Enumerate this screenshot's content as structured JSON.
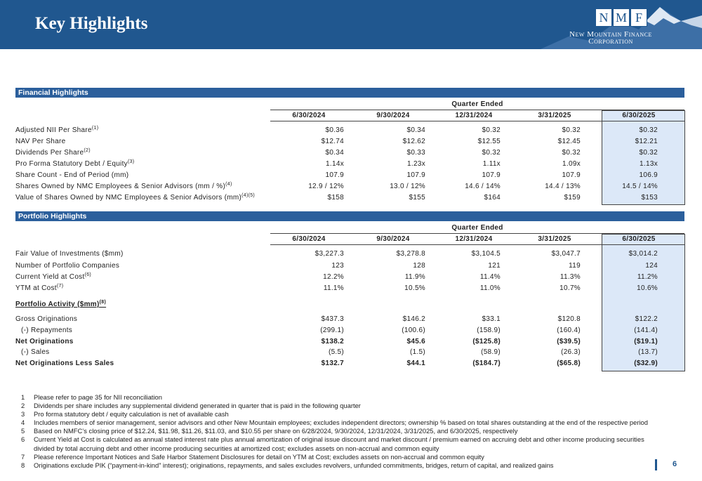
{
  "header": {
    "title": "Key Highlights",
    "logo_letters": [
      "N",
      "M",
      "F"
    ],
    "company_line1": "New Mountain Finance",
    "company_line2": "Corporation"
  },
  "financial": {
    "section_title": "Financial Highlights",
    "group_header": "Quarter Ended",
    "columns": [
      "6/30/2024",
      "9/30/2024",
      "12/31/2024",
      "3/31/2025",
      "6/30/2025"
    ],
    "rows": [
      {
        "label": "Adjusted NII Per Share",
        "sup": "(1)",
        "values": [
          "$0.36",
          "$0.34",
          "$0.32",
          "$0.32",
          "$0.32"
        ]
      },
      {
        "label": "NAV Per Share",
        "values": [
          "$12.74",
          "$12.62",
          "$12.55",
          "$12.45",
          "$12.21"
        ]
      },
      {
        "label": "Dividends Per Share",
        "sup": "(2)",
        "values": [
          "$0.34",
          "$0.33",
          "$0.32",
          "$0.32",
          "$0.32"
        ]
      },
      {
        "label": "Pro Forma Statutory Debt / Equity",
        "sup": "(3)",
        "values": [
          "1.14x",
          "1.23x",
          "1.11x",
          "1.09x",
          "1.13x"
        ]
      },
      {
        "label": "Share Count - End of Period (mm)",
        "values": [
          "107.9",
          "107.9",
          "107.9",
          "107.9",
          "106.9"
        ]
      },
      {
        "label": "Shares Owned by NMC Employees & Senior Advisors (mm / %)",
        "sup": "(4)",
        "values": [
          "12.9 / 12%",
          "13.0 / 12%",
          "14.6 / 14%",
          "14.4 / 13%",
          "14.5 / 14%"
        ]
      },
      {
        "label": "Value of Shares Owned by NMC Employees & Senior Advisors (mm)",
        "sup": "(4)(5)",
        "values": [
          "$158",
          "$155",
          "$164",
          "$159",
          "$153"
        ]
      }
    ]
  },
  "portfolio": {
    "section_title": "Portfolio Highlights",
    "group_header": "Quarter Ended",
    "columns": [
      "6/30/2024",
      "9/30/2024",
      "12/31/2024",
      "3/31/2025",
      "6/30/2025"
    ],
    "rows": [
      {
        "label": "Fair Value of Investments ($mm)",
        "values": [
          "$3,227.3",
          "$3,278.8",
          "$3,104.5",
          "$3,047.7",
          "$3,014.2"
        ]
      },
      {
        "label": "Number of Portfolio Companies",
        "values": [
          "123",
          "128",
          "121",
          "119",
          "124"
        ]
      },
      {
        "label": "Current Yield at Cost",
        "sup": "(6)",
        "values": [
          "12.2%",
          "11.9%",
          "11.4%",
          "11.3%",
          "11.2%"
        ]
      },
      {
        "label": "YTM at Cost",
        "sup": "(7)",
        "values": [
          "11.1%",
          "10.5%",
          "11.0%",
          "10.7%",
          "10.6%"
        ]
      }
    ],
    "activity_title": "Portfolio Activity ($mm)",
    "activity_sup": "(8)",
    "activity_rows": [
      {
        "label": "Gross Originations",
        "values": [
          "$437.3",
          "$146.2",
          "$33.1",
          "$120.8",
          "$122.2"
        ]
      },
      {
        "label": "(-) Repayments",
        "indent": true,
        "values": [
          "(299.1)",
          "(100.6)",
          "(158.9)",
          "(160.4)",
          "(141.4)"
        ]
      },
      {
        "label": "Net Originations",
        "bold": true,
        "values": [
          "$138.2",
          "$45.6",
          "($125.8)",
          "($39.5)",
          "($19.1)"
        ]
      },
      {
        "label": "(-) Sales",
        "indent": true,
        "values": [
          "(5.5)",
          "(1.5)",
          "(58.9)",
          "(26.3)",
          "(13.7)"
        ]
      },
      {
        "label": "Net Originations Less Sales",
        "bold": true,
        "values": [
          "$132.7",
          "$44.1",
          "($184.7)",
          "($65.8)",
          "($32.9)"
        ]
      }
    ]
  },
  "footnotes": [
    {
      "number": "1",
      "text": "Please refer to page 35 for NII reconciliation"
    },
    {
      "number": "2",
      "text": "Dividends per share includes any supplemental dividend generated in quarter that is paid in the following quarter"
    },
    {
      "number": "3",
      "text": "Pro forma statutory debt / equity calculation is net of available cash"
    },
    {
      "number": "4",
      "text": "Includes members of senior management, senior advisors and other New Mountain employees; excludes independent directors; ownership % based on total shares outstanding at the end of the respective period"
    },
    {
      "number": "5",
      "text": "Based on NMFC’s closing price of $12.24, $11.98, $11.26, $11.03, and $10.55 per share on 6/28/2024, 9/30/2024, 12/31/2024, 3/31/2025, and 6/30/2025, respectively"
    },
    {
      "number": "6",
      "text": "Current Yield at Cost is calculated as annual stated interest rate plus annual amortization of original issue discount and market discount / premium earned on accruing debt and other income producing securities divided by total accruing debt and other income producing securities at amortized cost; excludes assets on non-accrual and common equity"
    },
    {
      "number": "7",
      "text": "Please reference Important Notices and Safe Harbor Statement Disclosures for detail on YTM at Cost; excludes assets on non-accrual and common equity"
    },
    {
      "number": "8",
      "text": "Originations exclude PIK (“payment-in-kind” interest); originations, repayments, and sales excludes revolvers, unfunded commitments, bridges, return of capital, and realized gains"
    }
  ],
  "page_number": "6"
}
